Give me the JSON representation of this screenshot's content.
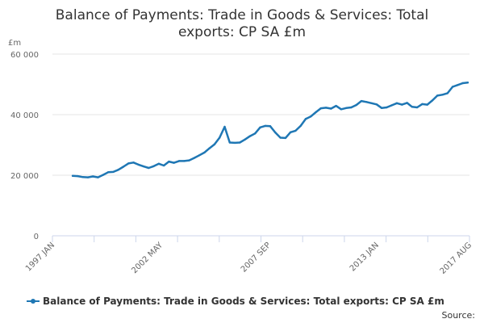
{
  "chart_data": {
    "type": "line",
    "title_lines": [
      "Balance of Payments: Trade in Goods & Services: Total",
      "exports: CP SA £m"
    ],
    "ylabel": "£m",
    "ylim": [
      0,
      60000
    ],
    "y_ticks": [
      {
        "value": 0,
        "label": "0"
      },
      {
        "value": 20000,
        "label": "20 000"
      },
      {
        "value": 40000,
        "label": "40 000"
      },
      {
        "value": 60000,
        "label": "60 000"
      }
    ],
    "x_range": [
      "1997-01",
      "2017-08"
    ],
    "x_tick_labels": [
      {
        "date": "1997-01",
        "label": "1997 JAN"
      },
      {
        "date": "2002-05",
        "label": "2002 MAY"
      },
      {
        "date": "2007-09",
        "label": "2007 SEP"
      },
      {
        "date": "2013-01",
        "label": "2013 JAN"
      },
      {
        "date": "2017-08",
        "label": "2017 AUG"
      }
    ],
    "minor_tick_count": 11,
    "grid": "horizontal",
    "legend_position": "bottom",
    "colors": {
      "line": "#1f77b4",
      "grid": "#e6e6e6",
      "axis": "#ccd6eb"
    },
    "series": [
      {
        "name": "Balance of Payments: Trade in Goods & Services: Total exports: CP SA £m",
        "x": [
          "1998-01",
          "1998-04",
          "1998-07",
          "1998-10",
          "1999-01",
          "1999-04",
          "1999-07",
          "1999-10",
          "2000-01",
          "2000-04",
          "2000-07",
          "2000-10",
          "2001-01",
          "2001-04",
          "2001-07",
          "2001-10",
          "2002-01",
          "2002-04",
          "2002-07",
          "2002-10",
          "2003-01",
          "2003-04",
          "2003-07",
          "2003-10",
          "2004-01",
          "2004-04",
          "2004-07",
          "2004-10",
          "2005-01",
          "2005-04",
          "2005-07",
          "2005-10",
          "2006-01",
          "2006-04",
          "2006-07",
          "2006-10",
          "2007-01",
          "2007-04",
          "2007-07",
          "2007-10",
          "2008-01",
          "2008-04",
          "2008-07",
          "2008-10",
          "2009-01",
          "2009-04",
          "2009-07",
          "2009-10",
          "2010-01",
          "2010-04",
          "2010-07",
          "2010-10",
          "2011-01",
          "2011-04",
          "2011-07",
          "2011-10",
          "2012-01",
          "2012-04",
          "2012-07",
          "2012-10",
          "2013-01",
          "2013-04",
          "2013-07",
          "2013-10",
          "2014-01",
          "2014-04",
          "2014-07",
          "2014-10",
          "2015-01",
          "2015-04",
          "2015-07",
          "2015-10",
          "2016-01",
          "2016-04",
          "2016-07",
          "2016-10",
          "2017-01",
          "2017-04",
          "2017-07"
        ],
        "values": [
          19800,
          19700,
          19400,
          19300,
          19600,
          19300,
          20100,
          21000,
          21100,
          21800,
          22800,
          23900,
          24200,
          23500,
          22900,
          22400,
          23000,
          23800,
          23200,
          24500,
          24100,
          24700,
          24700,
          24900,
          25700,
          26600,
          27500,
          28900,
          30200,
          32400,
          36000,
          30800,
          30700,
          30800,
          31800,
          32900,
          33800,
          35800,
          36300,
          36200,
          34100,
          32400,
          32300,
          34200,
          34700,
          36300,
          38600,
          39400,
          40800,
          42100,
          42300,
          42000,
          42900,
          41800,
          42200,
          42400,
          43200,
          44500,
          44200,
          43800,
          43400,
          42200,
          42400,
          43100,
          43800,
          43300,
          43900,
          42600,
          42400,
          43500,
          43300,
          44700,
          46300,
          46600,
          47100,
          49200,
          49800,
          50400,
          50600
        ]
      }
    ]
  },
  "footer": {
    "source_label": "Source:"
  }
}
